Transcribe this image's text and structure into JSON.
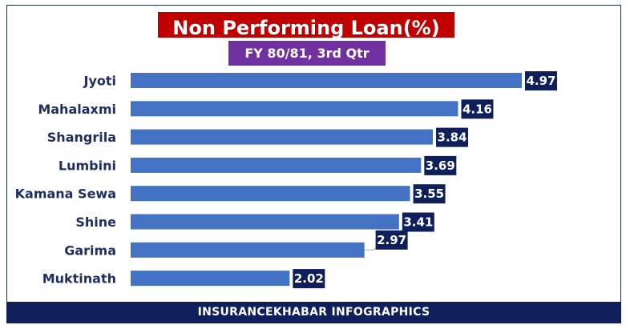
{
  "chart_data": {
    "type": "bar",
    "orientation": "horizontal",
    "title": "Non Performing Loan(%)",
    "subtitle": "FY 80/81, 3rd Qtr",
    "categories": [
      "Jyoti",
      "Mahalaxmi",
      "Shangrila",
      "Lumbini",
      "Kamana Sewa",
      "Shine",
      "Garima",
      "Muktinath"
    ],
    "values": [
      4.97,
      4.16,
      3.84,
      3.69,
      3.55,
      3.41,
      2.97,
      2.02
    ],
    "value_labels": [
      "4.97",
      "4.16",
      "3.84",
      "3.69",
      "3.55",
      "3.41",
      "2.97",
      "2.02"
    ],
    "xlim": [
      0,
      6
    ],
    "grid": false,
    "legend": "none",
    "colors": {
      "bar": "#4472c4",
      "label_box": "#0f1f5c",
      "title_bg": "#c00000",
      "subtitle_bg": "#7030a0",
      "category_text": "#1f2f63"
    }
  },
  "footer": {
    "text": "INSURANCEKHABAR INFOGRAPHICS"
  }
}
